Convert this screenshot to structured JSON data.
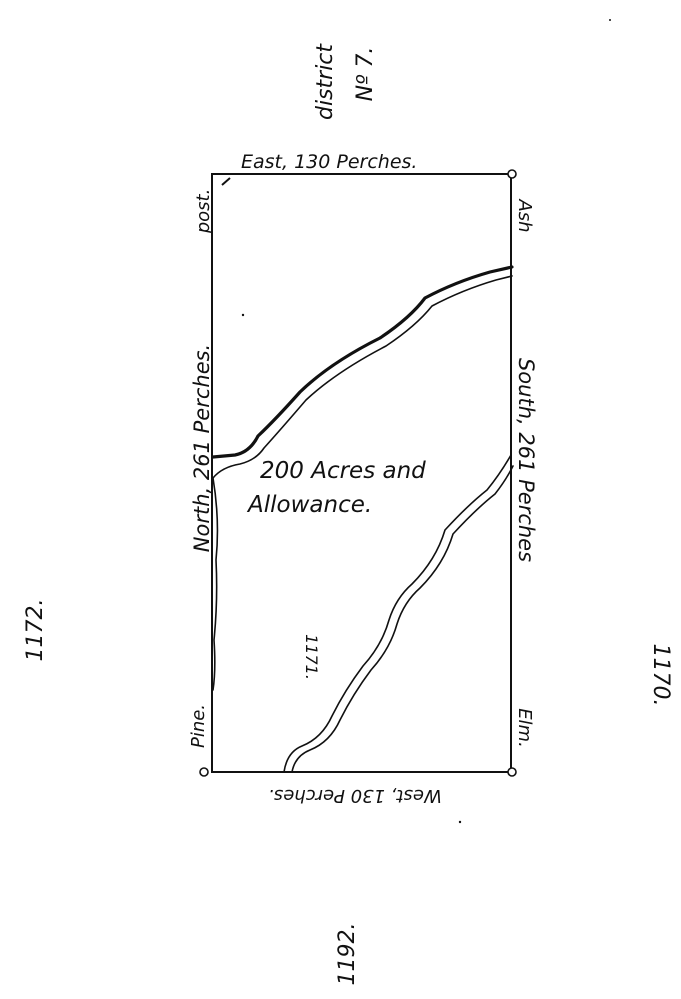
{
  "plat": {
    "district_label": "district",
    "district_number": "Nº 7.",
    "boundaries": {
      "east": "East, 130 Perches.",
      "west": "West, 130 Perches.",
      "north": "North, 261 Perches.",
      "south": "South, 261 Perches"
    },
    "corners": {
      "post": "post.",
      "ash": "Ash",
      "pine": "Pine.",
      "elm": "Elm."
    },
    "area_line1": "200 Acres and",
    "area_line2": "Allowance.",
    "lot_number": "1171.",
    "adjacent_lots": {
      "west_lot": "1172.",
      "east_lot": "1170.",
      "south_lot": "1192."
    }
  }
}
